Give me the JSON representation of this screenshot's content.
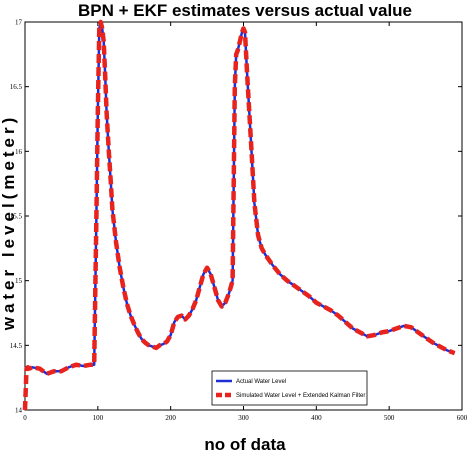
{
  "chart_data": {
    "type": "line",
    "title": "BPN + EKF estimates versus actual value",
    "xlabel": "no of data",
    "ylabel": "water level(meter)",
    "xlim": [
      0,
      600
    ],
    "ylim": [
      14,
      17
    ],
    "xticks": [
      "0",
      "100",
      "200",
      "300",
      "400",
      "500",
      "600"
    ],
    "yticks": [
      "14",
      "14.5",
      "15",
      "15.5",
      "16",
      "16.5",
      "17"
    ],
    "legend_position": "bottom-center",
    "series": [
      {
        "name": "Actual Water Level",
        "color": "#1f2fd6",
        "style": "solid",
        "x": [
          0,
          5,
          10,
          20,
          30,
          40,
          50,
          60,
          70,
          80,
          90,
          95,
          98,
          100,
          102,
          104,
          106,
          108,
          110,
          112,
          115,
          118,
          120,
          125,
          130,
          135,
          140,
          145,
          150,
          155,
          160,
          165,
          170,
          175,
          180,
          185,
          190,
          195,
          200,
          205,
          210,
          215,
          220,
          225,
          230,
          235,
          240,
          245,
          250,
          255,
          260,
          265,
          270,
          275,
          280,
          285,
          288,
          290,
          292,
          295,
          298,
          300,
          302,
          305,
          310,
          315,
          320,
          325,
          330,
          340,
          350,
          360,
          370,
          380,
          390,
          400,
          410,
          420,
          430,
          440,
          450,
          460,
          470,
          480,
          490,
          500,
          510,
          520,
          530,
          540,
          550,
          560,
          570,
          580,
          590
        ],
        "y": [
          14.33,
          14.32,
          14.33,
          14.32,
          14.28,
          14.3,
          14.3,
          14.33,
          14.35,
          14.34,
          14.35,
          14.35,
          15.5,
          16.3,
          16.95,
          17.0,
          16.95,
          16.85,
          16.6,
          16.3,
          16.0,
          15.75,
          15.55,
          15.3,
          15.1,
          14.95,
          14.82,
          14.73,
          14.66,
          14.6,
          14.55,
          14.52,
          14.5,
          14.49,
          14.48,
          14.5,
          14.51,
          14.53,
          14.58,
          14.68,
          14.72,
          14.73,
          14.7,
          14.73,
          14.78,
          14.85,
          14.95,
          15.05,
          15.1,
          15.05,
          14.95,
          14.85,
          14.8,
          14.83,
          14.9,
          15.0,
          16.5,
          16.75,
          16.78,
          16.85,
          16.92,
          16.95,
          16.92,
          16.6,
          16.1,
          15.6,
          15.35,
          15.25,
          15.2,
          15.12,
          15.05,
          15.0,
          14.96,
          14.92,
          14.88,
          14.83,
          14.8,
          14.77,
          14.73,
          14.68,
          14.63,
          14.6,
          14.57,
          14.58,
          14.6,
          14.61,
          14.63,
          14.65,
          14.64,
          14.6,
          14.56,
          14.52,
          14.49,
          14.46,
          14.44
        ]
      },
      {
        "name": "Simulated Water Level + Extended Kalman Filter",
        "color": "#e8231e",
        "style": "dashed",
        "x": [
          0,
          2,
          4,
          6,
          10,
          20,
          30,
          40,
          50,
          60,
          70,
          80,
          90,
          95,
          98,
          100,
          102,
          104,
          106,
          108,
          110,
          112,
          115,
          118,
          120,
          125,
          130,
          135,
          140,
          145,
          150,
          155,
          160,
          165,
          170,
          175,
          180,
          185,
          190,
          195,
          200,
          205,
          210,
          215,
          220,
          225,
          230,
          235,
          240,
          245,
          250,
          255,
          260,
          265,
          270,
          275,
          280,
          285,
          288,
          290,
          292,
          295,
          298,
          300,
          302,
          305,
          310,
          315,
          320,
          325,
          330,
          340,
          350,
          360,
          370,
          380,
          390,
          400,
          410,
          420,
          430,
          440,
          450,
          460,
          470,
          480,
          490,
          500,
          510,
          520,
          530,
          540,
          550,
          560,
          570,
          580,
          590
        ],
        "y": [
          14.0,
          14.32,
          14.33,
          14.32,
          14.33,
          14.32,
          14.28,
          14.3,
          14.3,
          14.33,
          14.35,
          14.34,
          14.35,
          14.35,
          15.5,
          16.3,
          16.95,
          17.0,
          16.95,
          16.85,
          16.6,
          16.3,
          16.0,
          15.75,
          15.55,
          15.3,
          15.1,
          14.95,
          14.82,
          14.73,
          14.66,
          14.6,
          14.55,
          14.52,
          14.5,
          14.49,
          14.48,
          14.5,
          14.51,
          14.53,
          14.58,
          14.68,
          14.72,
          14.73,
          14.7,
          14.73,
          14.78,
          14.85,
          14.95,
          15.05,
          15.1,
          15.05,
          14.95,
          14.85,
          14.8,
          14.83,
          14.9,
          15.0,
          16.5,
          16.75,
          16.78,
          16.85,
          16.92,
          16.95,
          16.92,
          16.6,
          16.1,
          15.6,
          15.35,
          15.25,
          15.2,
          15.12,
          15.05,
          15.0,
          14.96,
          14.92,
          14.88,
          14.83,
          14.8,
          14.77,
          14.73,
          14.68,
          14.63,
          14.6,
          14.57,
          14.58,
          14.6,
          14.61,
          14.63,
          14.65,
          14.64,
          14.6,
          14.56,
          14.52,
          14.49,
          14.46,
          14.44
        ]
      }
    ]
  }
}
